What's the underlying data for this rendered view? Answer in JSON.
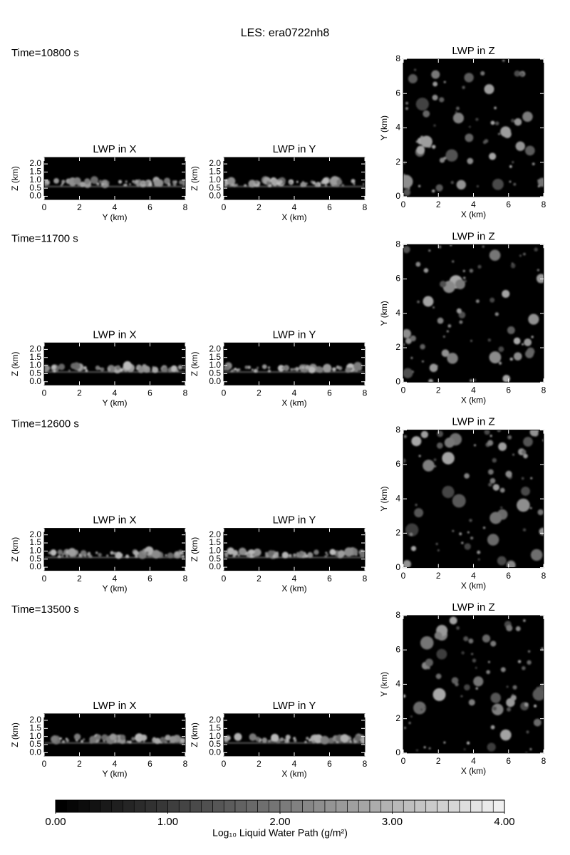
{
  "title": "LES: era0722nh8",
  "times": [
    "Time=10800 s",
    "Time=11700 s",
    "Time=12600 s",
    "Time=13500 s"
  ],
  "chart_data": [
    {
      "type": "image",
      "title": "LWP in X",
      "xlabel": "Y (km)",
      "ylabel": "Z (km)",
      "xlim": [
        0,
        8
      ],
      "ylim": [
        -0.2,
        2.4
      ],
      "xticks": [
        0,
        2,
        4,
        6,
        8
      ],
      "yticks": [
        {
          "value": 0,
          "label": "0.0"
        },
        {
          "value": 0.5,
          "label": "0.5"
        },
        {
          "value": 1,
          "label": "1.0"
        },
        {
          "value": 1.5,
          "label": "1.5"
        },
        {
          "value": 2,
          "label": "2.0"
        }
      ]
    },
    {
      "type": "image",
      "title": "LWP in Y",
      "xlabel": "X (km)",
      "ylabel": "Z (km)",
      "xlim": [
        0,
        8
      ],
      "ylim": [
        -0.2,
        2.4
      ],
      "xticks": [
        0,
        2,
        4,
        6,
        8
      ],
      "yticks": [
        {
          "value": 0,
          "label": "0.0"
        },
        {
          "value": 0.5,
          "label": "0.5"
        },
        {
          "value": 1,
          "label": "1.0"
        },
        {
          "value": 1.5,
          "label": "1.5"
        },
        {
          "value": 2,
          "label": "2.0"
        }
      ]
    },
    {
      "type": "image",
      "title": "LWP in Z",
      "xlabel": "X (km)",
      "ylabel": "Y (km)",
      "xlim": [
        0,
        8
      ],
      "ylim": [
        0,
        8
      ],
      "xticks": [
        0,
        2,
        4,
        6,
        8
      ],
      "yticks": [
        0,
        2,
        4,
        6,
        8
      ]
    },
    {
      "type": "image",
      "title": "LWP in X",
      "xlabel": "Y (km)",
      "ylabel": "Z (km)",
      "xlim": [
        0,
        8
      ],
      "ylim": [
        -0.2,
        2.4
      ],
      "xticks": [
        0,
        2,
        4,
        6,
        8
      ],
      "yticks": [
        {
          "value": 0,
          "label": "0.0"
        },
        {
          "value": 0.5,
          "label": "0.5"
        },
        {
          "value": 1,
          "label": "1.0"
        },
        {
          "value": 1.5,
          "label": "1.5"
        },
        {
          "value": 2,
          "label": "2.0"
        }
      ]
    },
    {
      "type": "image",
      "title": "LWP in Y",
      "xlabel": "X (km)",
      "ylabel": "Z (km)",
      "xlim": [
        0,
        8
      ],
      "ylim": [
        -0.2,
        2.4
      ],
      "xticks": [
        0,
        2,
        4,
        6,
        8
      ],
      "yticks": [
        {
          "value": 0,
          "label": "0.0"
        },
        {
          "value": 0.5,
          "label": "0.5"
        },
        {
          "value": 1,
          "label": "1.0"
        },
        {
          "value": 1.5,
          "label": "1.5"
        },
        {
          "value": 2,
          "label": "2.0"
        }
      ]
    },
    {
      "type": "image",
      "title": "LWP in Z",
      "xlabel": "X (km)",
      "ylabel": "Y (km)",
      "xlim": [
        0,
        8
      ],
      "ylim": [
        0,
        8
      ],
      "xticks": [
        0,
        2,
        4,
        6,
        8
      ],
      "yticks": [
        0,
        2,
        4,
        6,
        8
      ]
    },
    {
      "type": "image",
      "title": "LWP in X",
      "xlabel": "Y (km)",
      "ylabel": "Z (km)",
      "xlim": [
        0,
        8
      ],
      "ylim": [
        -0.2,
        2.4
      ],
      "xticks": [
        0,
        2,
        4,
        6,
        8
      ],
      "yticks": [
        {
          "value": 0,
          "label": "0.0"
        },
        {
          "value": 0.5,
          "label": "0.5"
        },
        {
          "value": 1,
          "label": "1.0"
        },
        {
          "value": 1.5,
          "label": "1.5"
        },
        {
          "value": 2,
          "label": "2.0"
        }
      ]
    },
    {
      "type": "image",
      "title": "LWP in Y",
      "xlabel": "X (km)",
      "ylabel": "Z (km)",
      "xlim": [
        0,
        8
      ],
      "ylim": [
        -0.2,
        2.4
      ],
      "xticks": [
        0,
        2,
        4,
        6,
        8
      ],
      "yticks": [
        {
          "value": 0,
          "label": "0.0"
        },
        {
          "value": 0.5,
          "label": "0.5"
        },
        {
          "value": 1,
          "label": "1.0"
        },
        {
          "value": 1.5,
          "label": "1.5"
        },
        {
          "value": 2,
          "label": "2.0"
        }
      ]
    },
    {
      "type": "image",
      "title": "LWP in Z",
      "xlabel": "X (km)",
      "ylabel": "Y (km)",
      "xlim": [
        0,
        8
      ],
      "ylim": [
        0,
        8
      ],
      "xticks": [
        0,
        2,
        4,
        6,
        8
      ],
      "yticks": [
        0,
        2,
        4,
        6,
        8
      ]
    },
    {
      "type": "image",
      "title": "LWP in X",
      "xlabel": "Y (km)",
      "ylabel": "Z (km)",
      "xlim": [
        0,
        8
      ],
      "ylim": [
        -0.2,
        2.4
      ],
      "xticks": [
        0,
        2,
        4,
        6,
        8
      ],
      "yticks": [
        {
          "value": 0,
          "label": "0.0"
        },
        {
          "value": 0.5,
          "label": "0.5"
        },
        {
          "value": 1,
          "label": "1.0"
        },
        {
          "value": 1.5,
          "label": "1.5"
        },
        {
          "value": 2,
          "label": "2.0"
        }
      ]
    },
    {
      "type": "image",
      "title": "LWP in Y",
      "xlabel": "X (km)",
      "ylabel": "Z (km)",
      "xlim": [
        0,
        8
      ],
      "ylim": [
        -0.2,
        2.4
      ],
      "xticks": [
        0,
        2,
        4,
        6,
        8
      ],
      "yticks": [
        {
          "value": 0,
          "label": "0.0"
        },
        {
          "value": 0.5,
          "label": "0.5"
        },
        {
          "value": 1,
          "label": "1.0"
        },
        {
          "value": 1.5,
          "label": "1.5"
        },
        {
          "value": 2,
          "label": "2.0"
        }
      ]
    },
    {
      "type": "image",
      "title": "LWP in Z",
      "xlabel": "X (km)",
      "ylabel": "Y (km)",
      "xlim": [
        0,
        8
      ],
      "ylim": [
        0,
        8
      ],
      "xticks": [
        0,
        2,
        4,
        6,
        8
      ],
      "yticks": [
        0,
        2,
        4,
        6,
        8
      ]
    },
    {
      "type": "colorbar",
      "xlabel": "Log₁₀ Liquid Water Path (g/m²)",
      "xlim": [
        0,
        4
      ],
      "xticks": [
        {
          "value": 0,
          "label": "0.00"
        },
        {
          "value": 1,
          "label": "1.00"
        },
        {
          "value": 2,
          "label": "2.00"
        },
        {
          "value": 3,
          "label": "3.00"
        },
        {
          "value": 4,
          "label": "4.00"
        }
      ]
    }
  ]
}
